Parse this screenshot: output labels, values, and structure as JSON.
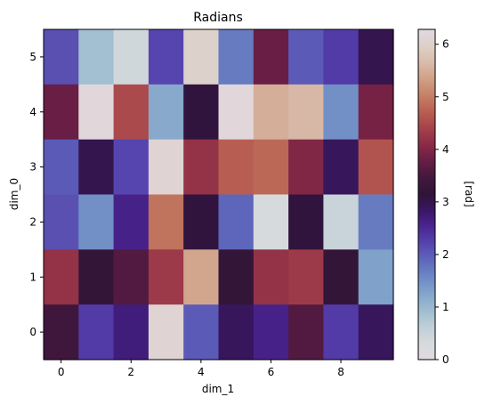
{
  "chart_data": {
    "type": "heatmap",
    "title": "Radians",
    "xlabel": "dim_1",
    "ylabel": "dim_0",
    "x_ticks": [
      0,
      2,
      4,
      6,
      8
    ],
    "y_ticks": [
      0,
      1,
      2,
      3,
      4,
      5
    ],
    "xlim": [
      -0.5,
      9.5
    ],
    "ylim": [
      -0.5,
      5.5
    ],
    "colormap": "twilight_shifted",
    "colorbar": {
      "label": "[rad]",
      "vmin": 0,
      "vmax": 6.283,
      "ticks": [
        0,
        1,
        2,
        3,
        4,
        5,
        6
      ]
    },
    "rows": [
      {
        "dim_0": 5,
        "values": [
          2.1,
          0.9,
          0.4,
          2.2,
          6.0,
          1.7,
          3.8,
          2.0,
          2.3,
          3.0
        ]
      },
      {
        "dim_0": 4,
        "values": [
          3.8,
          6.2,
          4.5,
          1.2,
          3.1,
          6.2,
          5.5,
          5.6,
          1.5,
          3.9
        ]
      },
      {
        "dim_0": 3,
        "values": [
          2.0,
          3.0,
          2.2,
          6.1,
          4.2,
          4.7,
          4.8,
          4.0,
          2.9,
          4.6
        ]
      },
      {
        "dim_0": 2,
        "values": [
          2.1,
          1.5,
          2.6,
          4.9,
          3.1,
          1.9,
          0.3,
          3.1,
          0.5,
          1.7
        ]
      },
      {
        "dim_0": 1,
        "values": [
          4.2,
          3.2,
          3.6,
          4.3,
          5.4,
          3.2,
          4.2,
          4.3,
          3.2,
          1.3
        ]
      },
      {
        "dim_0": 0,
        "values": [
          3.4,
          2.3,
          2.7,
          6.1,
          2.0,
          2.9,
          2.6,
          3.6,
          2.3,
          2.9
        ]
      }
    ]
  }
}
